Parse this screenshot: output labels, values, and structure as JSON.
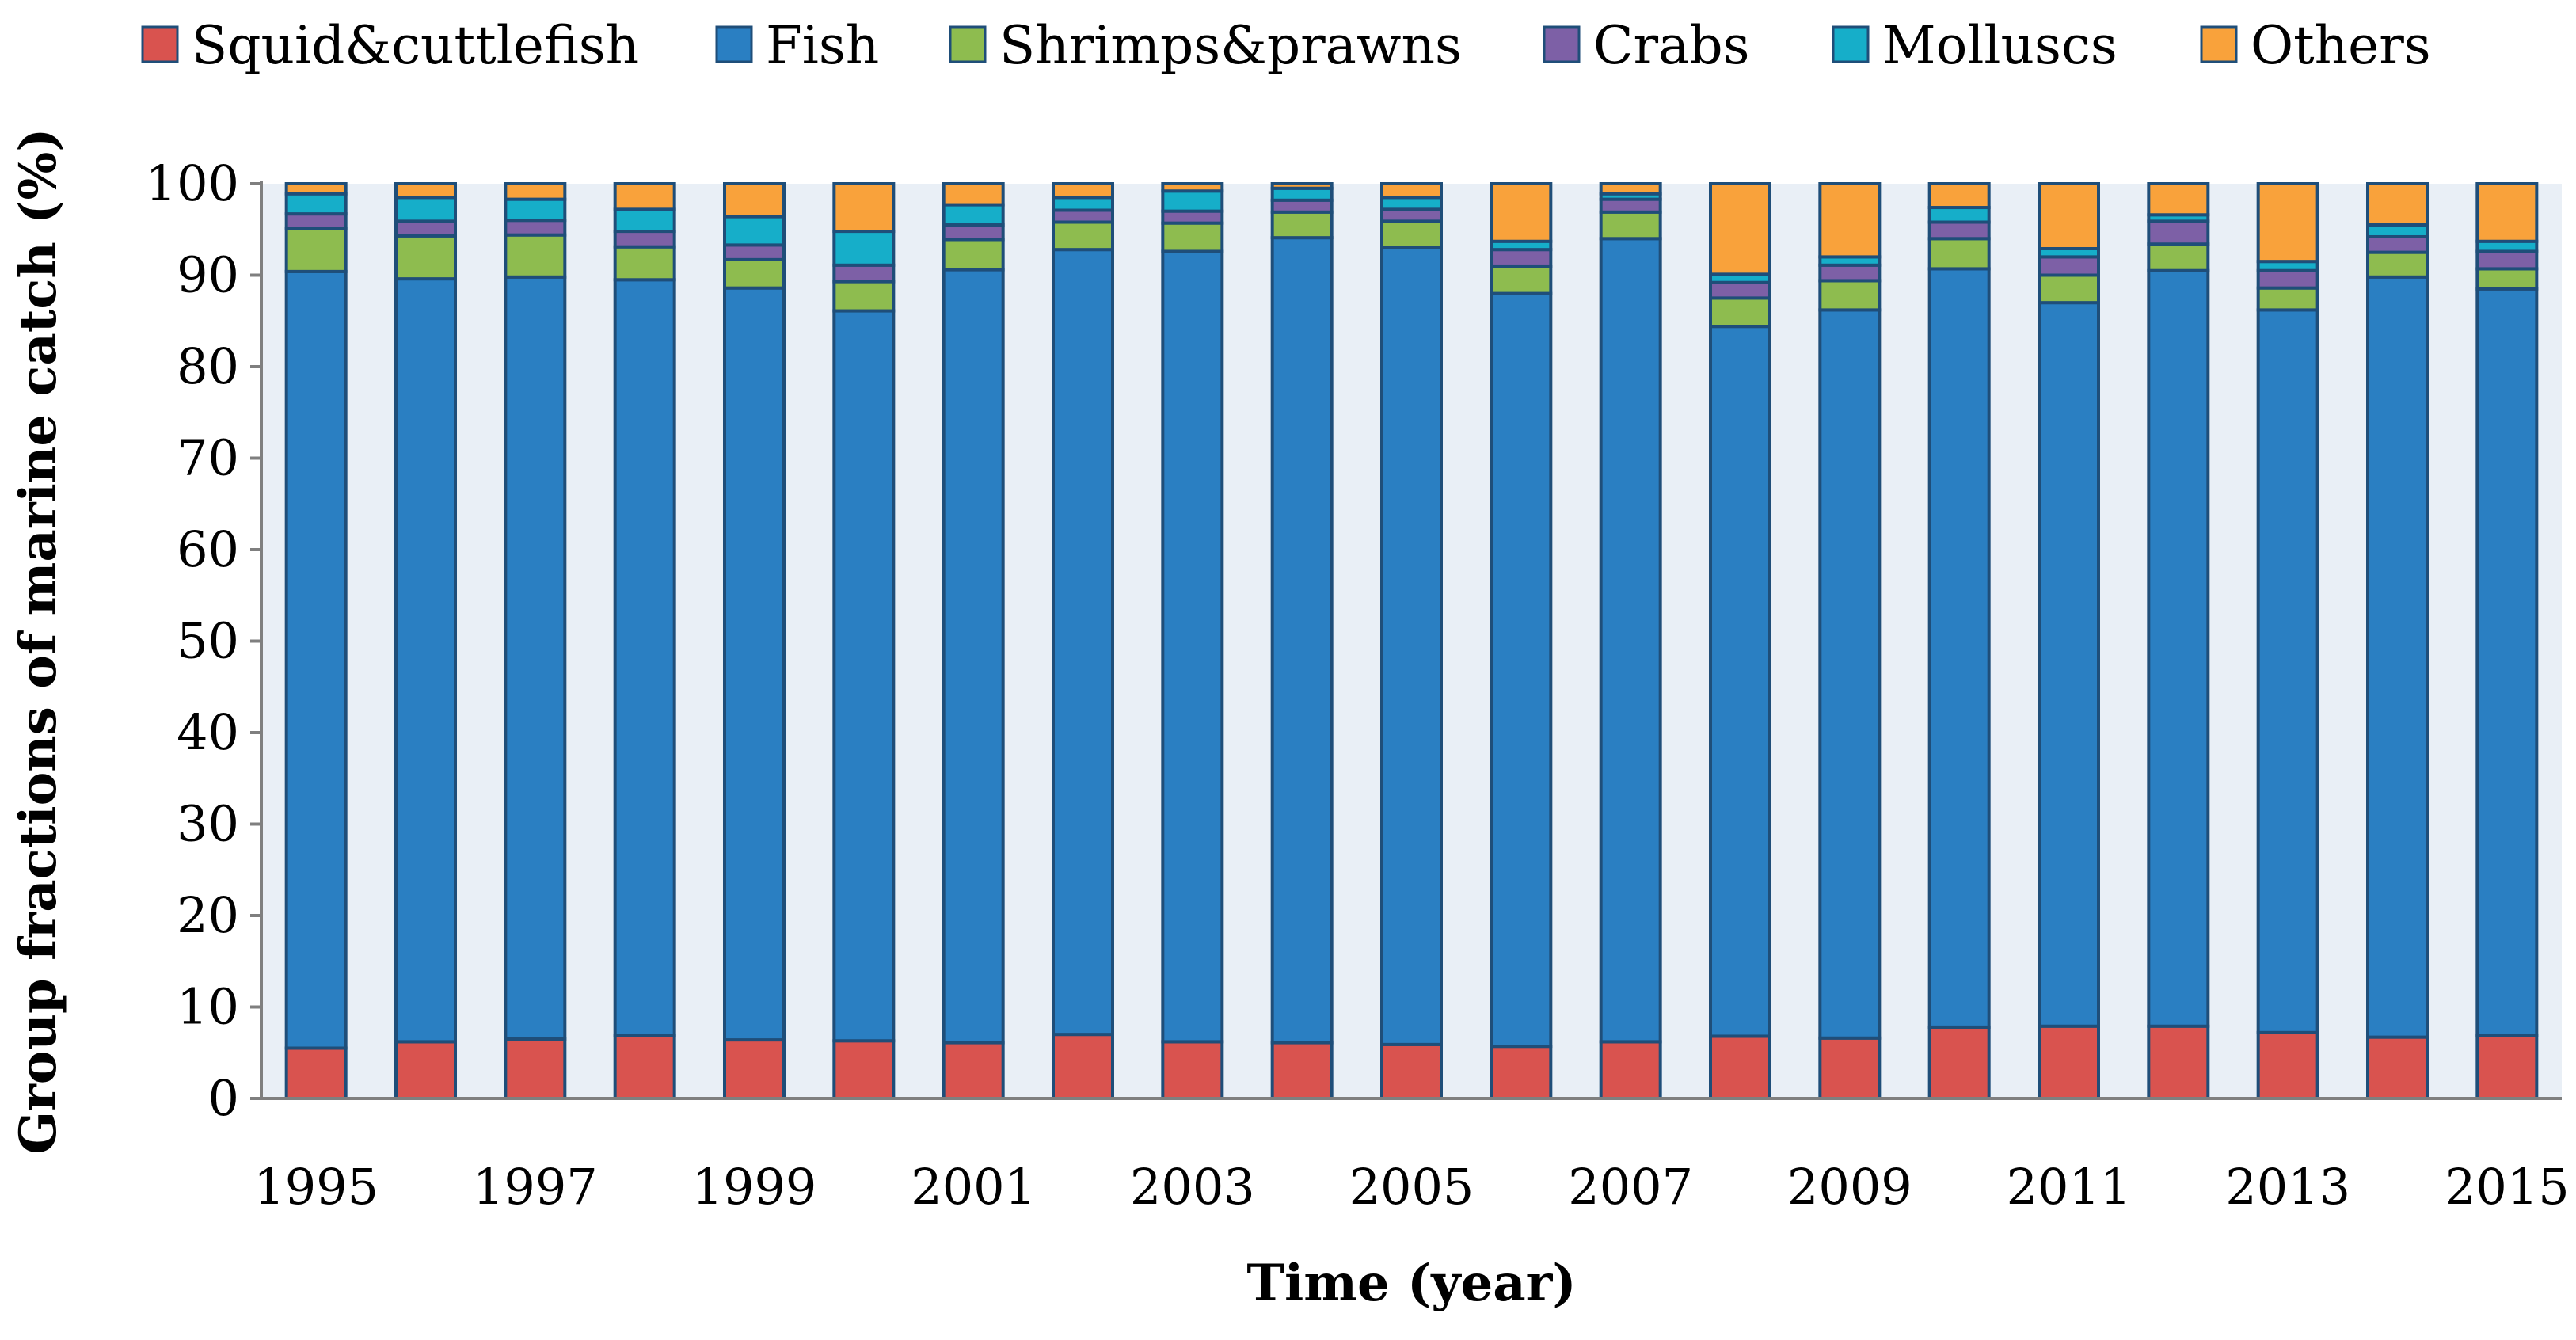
{
  "chart_data": {
    "type": "bar",
    "stacked": true,
    "title": "",
    "xlabel": "Time (year)",
    "ylabel": "Group fractions of marine catch (%)",
    "ylim": [
      0,
      100
    ],
    "yticks": [
      0,
      10,
      20,
      30,
      40,
      50,
      60,
      70,
      80,
      90,
      100
    ],
    "xtick_labels": [
      "1995",
      "1997",
      "1999",
      "2001",
      "2003",
      "2005",
      "2007",
      "2009",
      "2011",
      "2013",
      "2015"
    ],
    "categories": [
      "1995",
      "1996",
      "1997",
      "1998",
      "1999",
      "2000",
      "2001",
      "2002",
      "2003",
      "2004",
      "2005",
      "2006",
      "2007",
      "2008",
      "2009",
      "2010",
      "2011",
      "2012",
      "2013",
      "2014",
      "2015"
    ],
    "legend_position": "top",
    "plot_background": "#e9eff6",
    "bar_outline": "#1f4e79",
    "series": [
      {
        "name": "Squid&cuttlefish",
        "color": "#d9534f",
        "values": [
          5.5,
          6.2,
          6.5,
          6.9,
          6.4,
          6.3,
          6.1,
          7.0,
          6.2,
          6.1,
          5.9,
          5.7,
          6.2,
          6.8,
          6.6,
          7.8,
          7.9,
          7.9,
          7.2,
          6.7,
          6.9
        ]
      },
      {
        "name": "Fish",
        "color": "#2a7fc2",
        "values": [
          84.9,
          83.4,
          83.3,
          82.6,
          82.2,
          79.8,
          84.5,
          85.8,
          86.4,
          88.0,
          87.1,
          82.3,
          87.8,
          77.6,
          79.6,
          82.9,
          79.1,
          82.6,
          79.0,
          83.1,
          81.6
        ]
      },
      {
        "name": "Shrimps&prawns",
        "color": "#8ebc4f",
        "values": [
          4.7,
          4.7,
          4.6,
          3.6,
          3.1,
          3.2,
          3.3,
          3.0,
          3.1,
          2.8,
          2.9,
          3.0,
          2.9,
          3.1,
          3.2,
          3.3,
          3.0,
          2.9,
          2.4,
          2.7,
          2.2
        ]
      },
      {
        "name": "Crabs",
        "color": "#7d60a6",
        "values": [
          1.6,
          1.6,
          1.6,
          1.7,
          1.6,
          1.8,
          1.6,
          1.3,
          1.3,
          1.3,
          1.3,
          1.8,
          1.4,
          1.7,
          1.7,
          1.8,
          2.0,
          2.5,
          1.9,
          1.7,
          1.9
        ]
      },
      {
        "name": "Molluscs",
        "color": "#16aec9",
        "values": [
          2.2,
          2.6,
          2.3,
          2.4,
          3.1,
          3.7,
          2.2,
          1.4,
          2.2,
          1.3,
          1.3,
          0.9,
          0.6,
          0.9,
          0.9,
          1.6,
          0.9,
          0.7,
          1.0,
          1.3,
          1.1
        ]
      },
      {
        "name": "Others",
        "color": "#f9a23b",
        "values": [
          1.1,
          1.5,
          1.7,
          2.8,
          3.6,
          5.2,
          2.3,
          1.5,
          0.8,
          0.5,
          1.5,
          6.3,
          1.1,
          9.9,
          8.0,
          2.6,
          7.1,
          3.4,
          8.5,
          4.5,
          6.3
        ]
      }
    ]
  }
}
